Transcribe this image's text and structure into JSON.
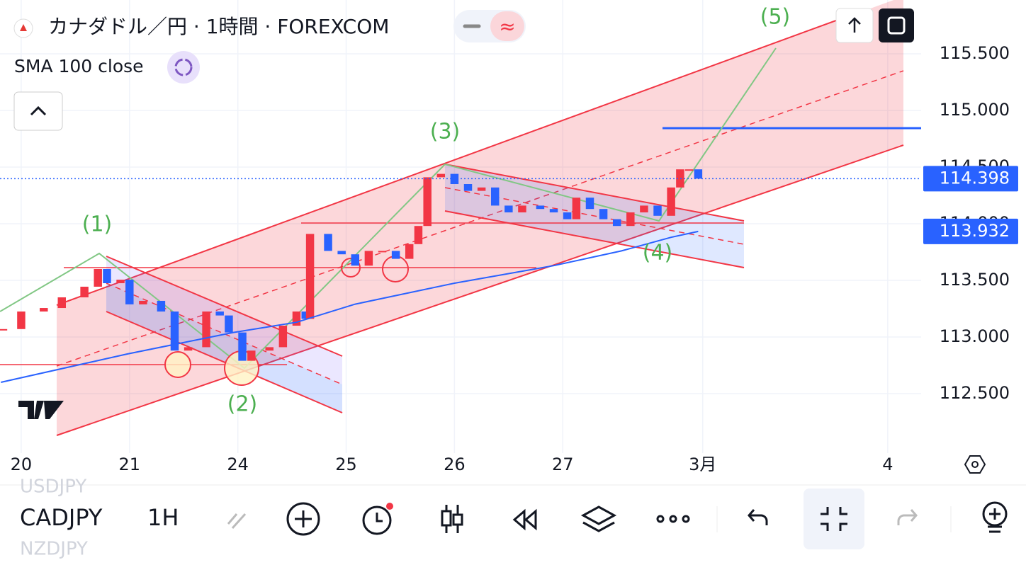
{
  "header": {
    "title": "カナダドル／円 · 1時間 · FOREXCOM"
  },
  "toolbar": {
    "symbols": [
      "USDJPY",
      "CADJPY",
      "NZDJPY"
    ],
    "interval": "1H"
  },
  "chart_data": {
    "type": "candlestick",
    "up_color": "#f23645",
    "down_color": "#2962ff",
    "x": [
      -4,
      0,
      5,
      9,
      14,
      17,
      19,
      22,
      24,
      27,
      31,
      34,
      37,
      41,
      44,
      46,
      49,
      51,
      55,
      58,
      61,
      63,
      64,
      68,
      71,
      74,
      77,
      80,
      83,
      86,
      88,
      90,
      93,
      96,
      99,
      102,
      105,
      108,
      111,
      115,
      118,
      121,
      123,
      126,
      129,
      132,
      135,
      138,
      141,
      144,
      146,
      148,
      150
    ],
    "close": [
      113.07,
      113.225,
      113.256,
      113.35,
      113.444,
      113.6,
      113.475,
      113.506,
      113.288,
      113.319,
      113.225,
      112.88,
      112.91,
      113.225,
      113.19,
      113.04,
      112.79,
      112.88,
      112.91,
      113.1,
      113.225,
      113.16,
      113.91,
      113.76,
      113.73,
      113.63,
      113.76,
      113.76,
      113.69,
      113.82,
      113.98,
      114.41,
      114.44,
      114.35,
      114.29,
      114.32,
      114.16,
      114.1,
      114.16,
      114.13,
      114.1,
      114.04,
      114.23,
      114.13,
      114.04,
      113.98,
      114.1,
      114.16,
      114.07,
      114.32,
      114.48,
      114.48,
      114.398
    ],
    "sma": {
      "name": "SMA 100 close",
      "color": "#2962ff",
      "x": [
        -4.5,
        23.5,
        47,
        61,
        74,
        96,
        118,
        133,
        144,
        150
      ],
      "values": [
        112.6,
        112.85,
        113.04,
        113.13,
        113.29,
        113.475,
        113.63,
        113.76,
        113.88,
        113.932
      ]
    },
    "ylim": [
      111.975,
      115.975
    ],
    "yticks": [
      {
        "value": 112.5,
        "label": "112.500"
      },
      {
        "value": 113,
        "label": "113.000"
      },
      {
        "value": 113.5,
        "label": "113.500"
      },
      {
        "value": 114,
        "label": "114.000"
      },
      {
        "value": 114.5,
        "label": "114.500"
      },
      {
        "value": 115,
        "label": "115.000"
      },
      {
        "value": 115.5,
        "label": "115.500"
      }
    ],
    "xlim": [
      -4.7,
      199.4
    ],
    "xticks": [
      {
        "value": 0,
        "label": "20"
      },
      {
        "value": 24,
        "label": "21"
      },
      {
        "value": 48,
        "label": "24"
      },
      {
        "value": 72,
        "label": "25"
      },
      {
        "value": 96,
        "label": "26"
      },
      {
        "value": 120,
        "label": "27"
      },
      {
        "value": 151,
        "label": "3月"
      },
      {
        "value": 192,
        "label": "4"
      }
    ],
    "annotations": [
      "(1)",
      "(2)",
      "(3)",
      "(4)",
      "(5)"
    ]
  }
}
